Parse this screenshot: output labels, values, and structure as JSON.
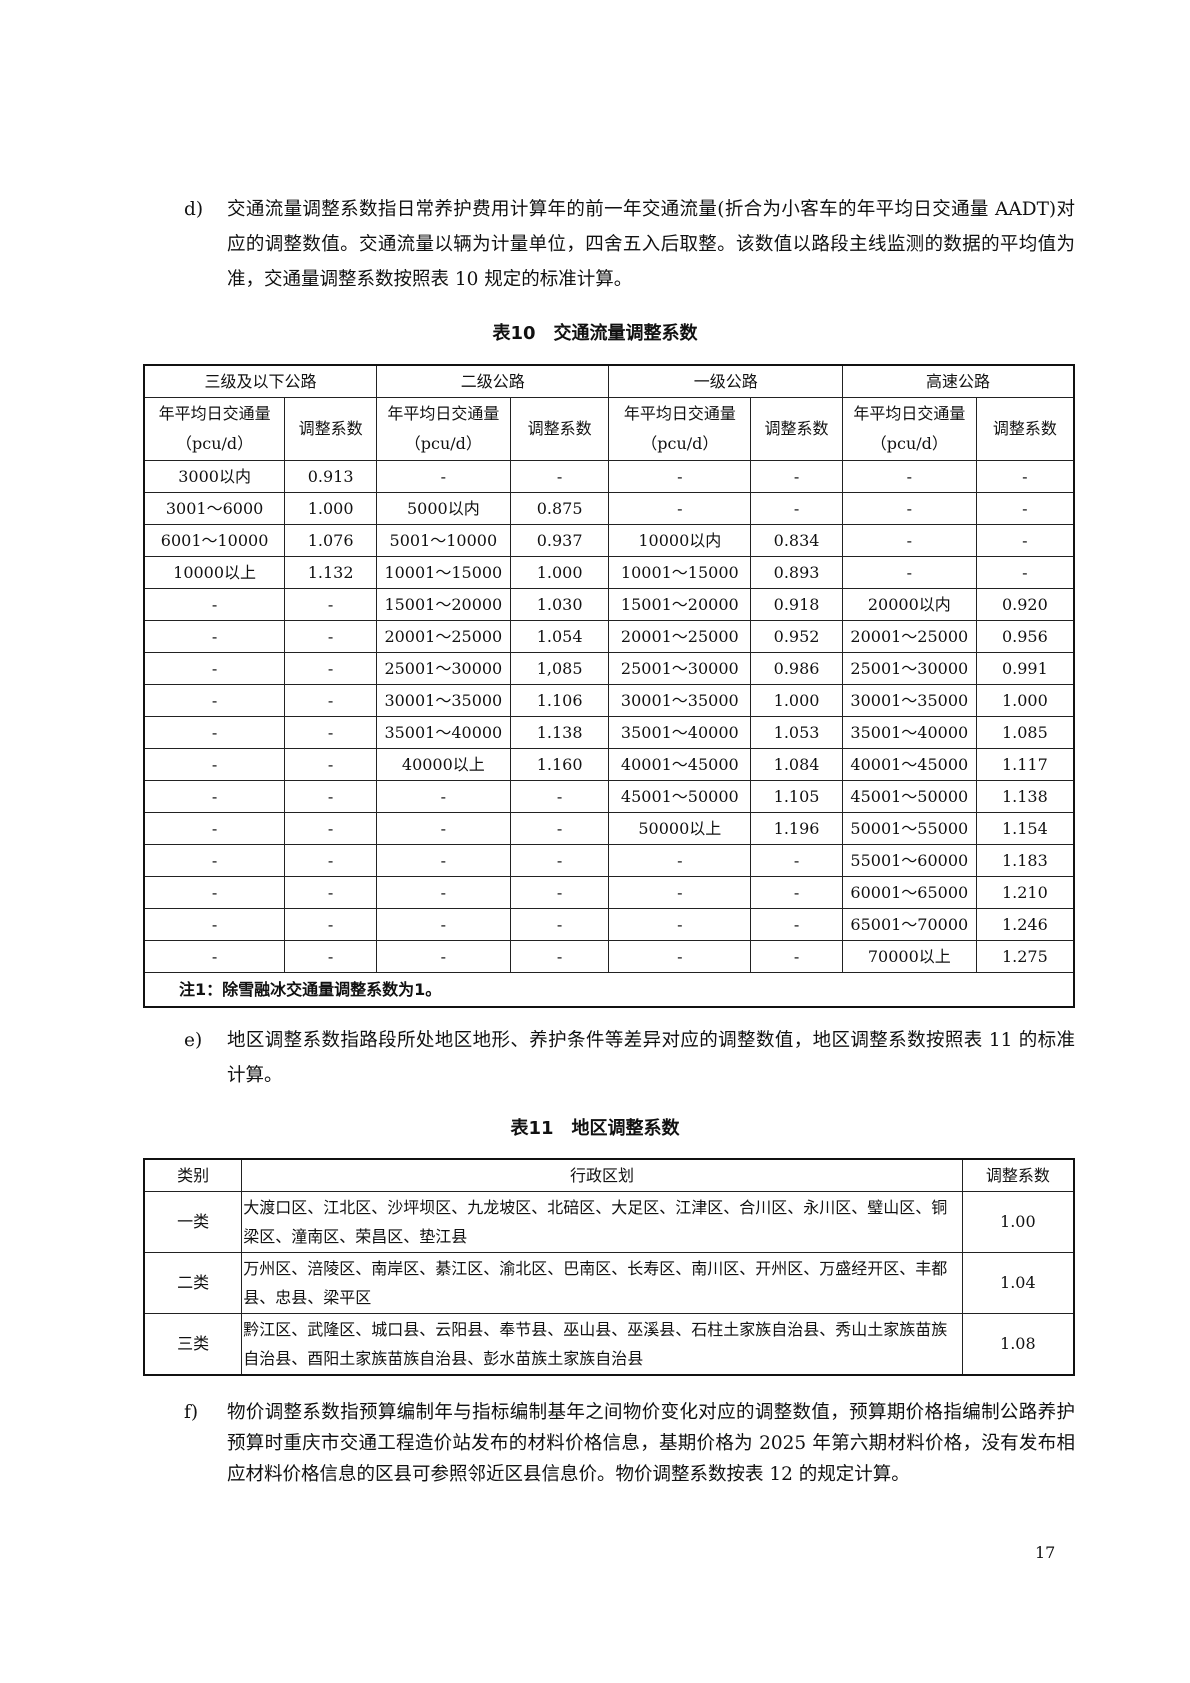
{
  "para_d": {
    "label": "d)",
    "text": "交通流量调整系数指日常养护费用计算年的前一年交通流量(折合为小客车的年平均日交通量 AADT)对应的调整数值。交通流量以辆为计量单位，四舍五入后取整。该数值以路段主线监测的数据的平均值为准，交通量调整系数按照表 10 规定的标准计算。"
  },
  "table10": {
    "title": "表10　交通流量调整系数",
    "groups": [
      "三级及以下公路",
      "二级公路",
      "一级公路",
      "高速公路"
    ],
    "sub_volume": "年平均日交通量",
    "sub_unit": "（pcu/d）",
    "sub_coef": "调整系数",
    "rows": [
      [
        "3000以内",
        "0.913",
        "-",
        "-",
        "-",
        "-",
        "-",
        "-"
      ],
      [
        "3001～6000",
        "1.000",
        "5000以内",
        "0.875",
        "-",
        "-",
        "-",
        "-"
      ],
      [
        "6001～10000",
        "1.076",
        "5001～10000",
        "0.937",
        "10000以内",
        "0.834",
        "-",
        "-"
      ],
      [
        "10000以上",
        "1.132",
        "10001～15000",
        "1.000",
        "10001～15000",
        "0.893",
        "-",
        "-"
      ],
      [
        "-",
        "-",
        "15001～20000",
        "1.030",
        "15001～20000",
        "0.918",
        "20000以内",
        "0.920"
      ],
      [
        "-",
        "-",
        "20001～25000",
        "1.054",
        "20001～25000",
        "0.952",
        "20001～25000",
        "0.956"
      ],
      [
        "-",
        "-",
        "25001～30000",
        "1,085",
        "25001～30000",
        "0.986",
        "25001～30000",
        "0.991"
      ],
      [
        "-",
        "-",
        "30001～35000",
        "1.106",
        "30001～35000",
        "1.000",
        "30001～35000",
        "1.000"
      ],
      [
        "-",
        "-",
        "35001～40000",
        "1.138",
        "35001～40000",
        "1.053",
        "35001～40000",
        "1.085"
      ],
      [
        "-",
        "-",
        "40000以上",
        "1.160",
        "40001～45000",
        "1.084",
        "40001～45000",
        "1.117"
      ],
      [
        "-",
        "-",
        "-",
        "-",
        "45001～50000",
        "1.105",
        "45001～50000",
        "1.138"
      ],
      [
        "-",
        "-",
        "-",
        "-",
        "50000以上",
        "1.196",
        "50001～55000",
        "1.154"
      ],
      [
        "-",
        "-",
        "-",
        "-",
        "-",
        "-",
        "55001～60000",
        "1.183"
      ],
      [
        "-",
        "-",
        "-",
        "-",
        "-",
        "-",
        "60001～65000",
        "1.210"
      ],
      [
        "-",
        "-",
        "-",
        "-",
        "-",
        "-",
        "65001～70000",
        "1.246"
      ],
      [
        "-",
        "-",
        "-",
        "-",
        "-",
        "-",
        "70000以上",
        "1.275"
      ]
    ],
    "note": "注1：除雪融冰交通量调整系数为1。"
  },
  "para_e": {
    "label": "e)",
    "text": "地区调整系数指路段所处地区地形、养护条件等差异对应的调整数值，地区调整系数按照表 11 的标准计算。"
  },
  "table11": {
    "title": "表11　地区调整系数",
    "headers": [
      "类别",
      "行政区划",
      "调整系数"
    ],
    "rows": [
      [
        "一类",
        "大渡口区、江北区、沙坪坝区、九龙坡区、北碚区、大足区、江津区、合川区、永川区、璧山区、铜梁区、潼南区、荣昌区、垫江县",
        "1.00"
      ],
      [
        "二类",
        "万州区、涪陵区、南岸区、綦江区、渝北区、巴南区、长寿区、南川区、开州区、万盛经开区、丰都县、忠县、梁平区",
        "1.04"
      ],
      [
        "三类",
        "黔江区、武隆区、城口县、云阳县、奉节县、巫山县、巫溪县、石柱土家族自治县、秀山土家族苗族自治县、酉阳土家族苗族自治县、彭水苗族土家族自治县",
        "1.08"
      ]
    ]
  },
  "para_f": {
    "label": "f)",
    "text": "物价调整系数指预算编制年与指标编制基年之间物价变化对应的调整数值，预算期价格指编制公路养护预算时重庆市交通工程造价站发布的材料价格信息，基期价格为 2025 年第六期材料价格，没有发布相应材料价格信息的区县可参照邻近区县信息价。物价调整系数按表 12 的规定计算。"
  },
  "page_number": "17"
}
